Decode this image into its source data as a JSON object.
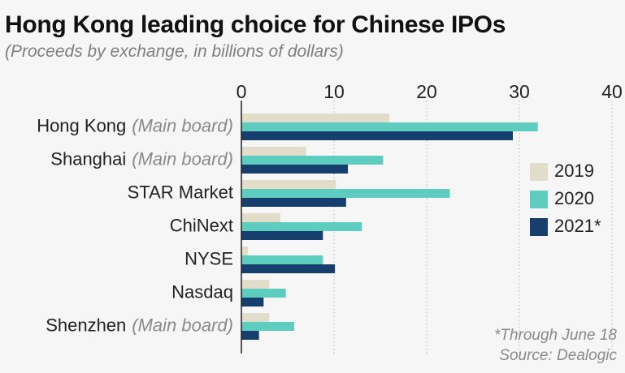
{
  "title": "Hong Kong leading choice for Chinese IPOs",
  "subtitle": "(Proceeds by exchange, in billions of dollars)",
  "footnote": "*Through June 18",
  "source": "Source: Dealogic",
  "colors": {
    "2019": "#e2dccb",
    "2020": "#5ecdc0",
    "2021*": "#173f6e",
    "grid": "#b5b5b5",
    "axis": "#222222",
    "label_muted": "#8a8a8a"
  },
  "chart_data": {
    "type": "bar",
    "orientation": "horizontal",
    "categories": [
      {
        "name": "Hong Kong",
        "qualifier": "(Main board)"
      },
      {
        "name": "Shanghai",
        "qualifier": "(Main board)"
      },
      {
        "name": "STAR Market",
        "qualifier": ""
      },
      {
        "name": "ChiNext",
        "qualifier": ""
      },
      {
        "name": "NYSE",
        "qualifier": ""
      },
      {
        "name": "Nasdaq",
        "qualifier": ""
      },
      {
        "name": "Shenzhen",
        "qualifier": "(Main board)"
      }
    ],
    "series": [
      {
        "name": "2019",
        "values": [
          16,
          7,
          10.2,
          4.2,
          0.7,
          3,
          3
        ]
      },
      {
        "name": "2020",
        "values": [
          32,
          15.3,
          22.5,
          13,
          8.8,
          4.8,
          5.7
        ]
      },
      {
        "name": "2021*",
        "values": [
          29.3,
          11.5,
          11.3,
          8.8,
          10.1,
          2.4,
          1.9
        ]
      }
    ],
    "xlim": [
      0,
      40
    ],
    "xticks": [
      0,
      10,
      20,
      30,
      40
    ],
    "grid": true,
    "gridline_style": "dotted",
    "legend_position": "right"
  }
}
